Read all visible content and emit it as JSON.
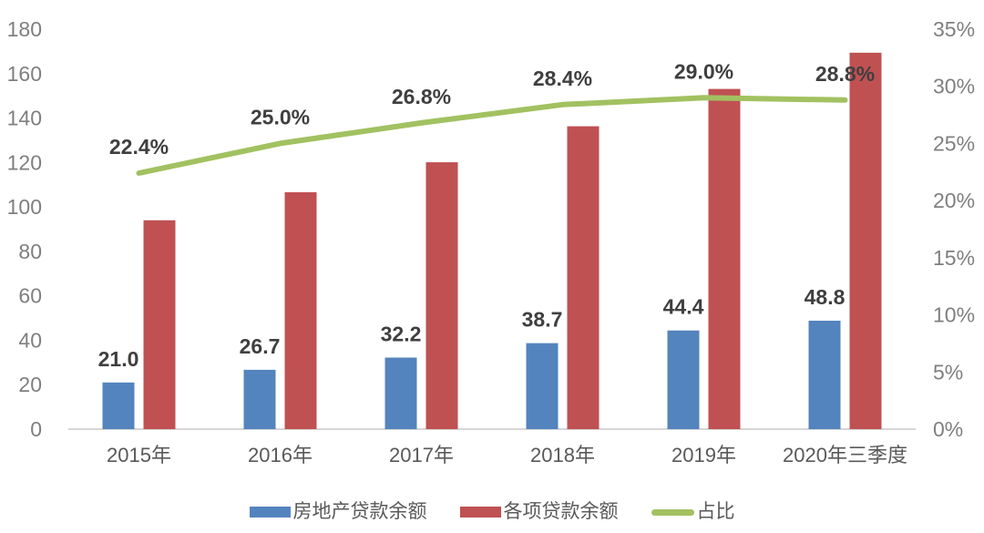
{
  "chart_data": {
    "type": "combo-bar-line",
    "title": "",
    "categories": [
      "2015年",
      "2016年",
      "2017年",
      "2018年",
      "2019年",
      "2020年三季度"
    ],
    "series": [
      {
        "name": "房地产贷款余额",
        "type": "bar",
        "axis": "left",
        "color": "#5384BD",
        "values": [
          21.0,
          26.7,
          32.2,
          38.7,
          44.4,
          48.8
        ],
        "labels": [
          "21.0",
          "26.7",
          "32.2",
          "38.7",
          "44.4",
          "48.8"
        ]
      },
      {
        "name": "各项贷款余额",
        "type": "bar",
        "axis": "left",
        "color": "#BF5152",
        "values": [
          94.0,
          106.6,
          120.1,
          136.3,
          153.1,
          169.4
        ],
        "labels": []
      },
      {
        "name": "占比",
        "type": "line",
        "axis": "right",
        "color": "#A2C161",
        "values": [
          22.4,
          25.0,
          26.8,
          28.4,
          29.0,
          28.8
        ],
        "labels": [
          "22.4%",
          "25.0%",
          "26.8%",
          "28.4%",
          "29.0%",
          "28.8%"
        ]
      }
    ],
    "left_axis": {
      "min": 0,
      "max": 180,
      "step": 20,
      "ticks": [
        "0",
        "20",
        "40",
        "60",
        "80",
        "100",
        "120",
        "140",
        "160",
        "180"
      ]
    },
    "right_axis": {
      "min": 0,
      "max": 35,
      "step": 5,
      "ticks": [
        "0%",
        "5%",
        "10%",
        "15%",
        "20%",
        "25%",
        "30%",
        "35%"
      ]
    },
    "grid": false,
    "legend_position": "bottom"
  },
  "colors": {
    "bar_blue": "#5384BD",
    "bar_red": "#BF5152",
    "line_green": "#A2C161",
    "axis_tick_text": "#7F7F7F",
    "category_text": "#595959",
    "data_label_text": "#3F3F3F",
    "axis_line": "#D6D6D6",
    "background": "#FFFFFF"
  }
}
